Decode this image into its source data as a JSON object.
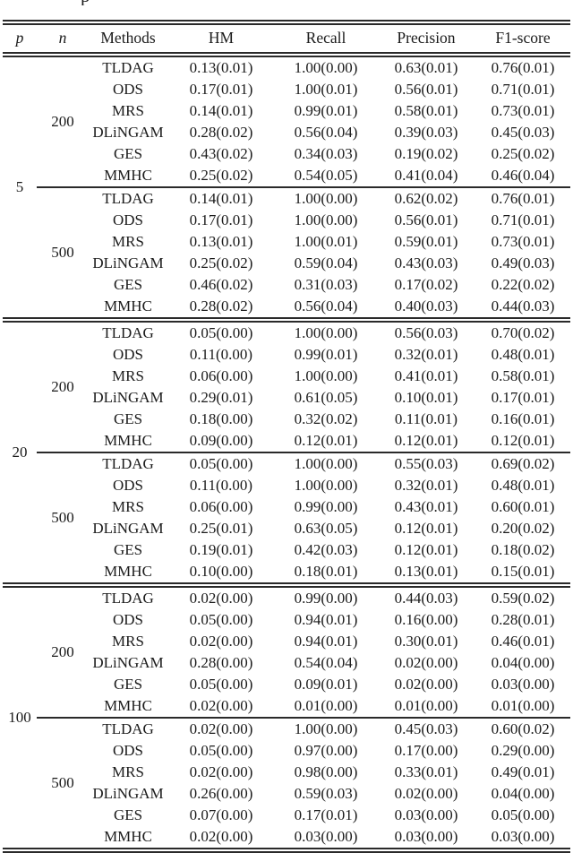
{
  "caption_fragment": "p",
  "colors": {
    "text": "#1b1b1b",
    "rule": "#2a2a2a",
    "background": "#ffffff"
  },
  "table": {
    "headers": [
      "p",
      "n",
      "Methods",
      "HM",
      "Recall",
      "Precision",
      "F1-score"
    ],
    "groups": [
      {
        "p": "5",
        "subgroups": [
          {
            "n": "200",
            "rows": [
              {
                "method": "TLDAG",
                "values": [
                  "0.13(0.01)",
                  "1.00(0.00)",
                  "0.63(0.01)",
                  "0.76(0.01)"
                ]
              },
              {
                "method": "ODS",
                "values": [
                  "0.17(0.01)",
                  "1.00(0.01)",
                  "0.56(0.01)",
                  "0.71(0.01)"
                ]
              },
              {
                "method": "MRS",
                "values": [
                  "0.14(0.01)",
                  "0.99(0.01)",
                  "0.58(0.01)",
                  "0.73(0.01)"
                ]
              },
              {
                "method": "DLiNGAM",
                "values": [
                  "0.28(0.02)",
                  "0.56(0.04)",
                  "0.39(0.03)",
                  "0.45(0.03)"
                ]
              },
              {
                "method": "GES",
                "values": [
                  "0.43(0.02)",
                  "0.34(0.03)",
                  "0.19(0.02)",
                  "0.25(0.02)"
                ]
              },
              {
                "method": "MMHC",
                "values": [
                  "0.25(0.02)",
                  "0.54(0.05)",
                  "0.41(0.04)",
                  "0.46(0.04)"
                ]
              }
            ]
          },
          {
            "n": "500",
            "rows": [
              {
                "method": "TLDAG",
                "values": [
                  "0.14(0.01)",
                  "1.00(0.00)",
                  "0.62(0.02)",
                  "0.76(0.01)"
                ]
              },
              {
                "method": "ODS",
                "values": [
                  "0.17(0.01)",
                  "1.00(0.00)",
                  "0.56(0.01)",
                  "0.71(0.01)"
                ]
              },
              {
                "method": "MRS",
                "values": [
                  "0.13(0.01)",
                  "1.00(0.01)",
                  "0.59(0.01)",
                  "0.73(0.01)"
                ]
              },
              {
                "method": "DLiNGAM",
                "values": [
                  "0.25(0.02)",
                  "0.59(0.04)",
                  "0.43(0.03)",
                  "0.49(0.03)"
                ]
              },
              {
                "method": "GES",
                "values": [
                  "0.46(0.02)",
                  "0.31(0.03)",
                  "0.17(0.02)",
                  "0.22(0.02)"
                ]
              },
              {
                "method": "MMHC",
                "values": [
                  "0.28(0.02)",
                  "0.56(0.04)",
                  "0.40(0.03)",
                  "0.44(0.03)"
                ]
              }
            ]
          }
        ]
      },
      {
        "p": "20",
        "subgroups": [
          {
            "n": "200",
            "rows": [
              {
                "method": "TLDAG",
                "values": [
                  "0.05(0.00)",
                  "1.00(0.00)",
                  "0.56(0.03)",
                  "0.70(0.02)"
                ]
              },
              {
                "method": "ODS",
                "values": [
                  "0.11(0.00)",
                  "0.99(0.01)",
                  "0.32(0.01)",
                  "0.48(0.01)"
                ]
              },
              {
                "method": "MRS",
                "values": [
                  "0.06(0.00)",
                  "1.00(0.00)",
                  "0.41(0.01)",
                  "0.58(0.01)"
                ]
              },
              {
                "method": "DLiNGAM",
                "values": [
                  "0.29(0.01)",
                  "0.61(0.05)",
                  "0.10(0.01)",
                  "0.17(0.01)"
                ]
              },
              {
                "method": "GES",
                "values": [
                  "0.18(0.00)",
                  "0.32(0.02)",
                  "0.11(0.01)",
                  "0.16(0.01)"
                ]
              },
              {
                "method": "MMHC",
                "values": [
                  "0.09(0.00)",
                  "0.12(0.01)",
                  "0.12(0.01)",
                  "0.12(0.01)"
                ]
              }
            ]
          },
          {
            "n": "500",
            "rows": [
              {
                "method": "TLDAG",
                "values": [
                  "0.05(0.00)",
                  "1.00(0.00)",
                  "0.55(0.03)",
                  "0.69(0.02)"
                ]
              },
              {
                "method": "ODS",
                "values": [
                  "0.11(0.00)",
                  "1.00(0.00)",
                  "0.32(0.01)",
                  "0.48(0.01)"
                ]
              },
              {
                "method": "MRS",
                "values": [
                  "0.06(0.00)",
                  "0.99(0.00)",
                  "0.43(0.01)",
                  "0.60(0.01)"
                ]
              },
              {
                "method": "DLiNGAM",
                "values": [
                  "0.25(0.01)",
                  "0.63(0.05)",
                  "0.12(0.01)",
                  "0.20(0.02)"
                ]
              },
              {
                "method": "GES",
                "values": [
                  "0.19(0.01)",
                  "0.42(0.03)",
                  "0.12(0.01)",
                  "0.18(0.02)"
                ]
              },
              {
                "method": "MMHC",
                "values": [
                  "0.10(0.00)",
                  "0.18(0.01)",
                  "0.13(0.01)",
                  "0.15(0.01)"
                ]
              }
            ]
          }
        ]
      },
      {
        "p": "100",
        "subgroups": [
          {
            "n": "200",
            "rows": [
              {
                "method": "TLDAG",
                "values": [
                  "0.02(0.00)",
                  "0.99(0.00)",
                  "0.44(0.03)",
                  "0.59(0.02)"
                ]
              },
              {
                "method": "ODS",
                "values": [
                  "0.05(0.00)",
                  "0.94(0.01)",
                  "0.16(0.00)",
                  "0.28(0.01)"
                ]
              },
              {
                "method": "MRS",
                "values": [
                  "0.02(0.00)",
                  "0.94(0.01)",
                  "0.30(0.01)",
                  "0.46(0.01)"
                ]
              },
              {
                "method": "DLiNGAM",
                "values": [
                  "0.28(0.00)",
                  "0.54(0.04)",
                  "0.02(0.00)",
                  "0.04(0.00)"
                ]
              },
              {
                "method": "GES",
                "values": [
                  "0.05(0.00)",
                  "0.09(0.01)",
                  "0.02(0.00)",
                  "0.03(0.00)"
                ]
              },
              {
                "method": "MMHC",
                "values": [
                  "0.02(0.00)",
                  "0.01(0.00)",
                  "0.01(0.00)",
                  "0.01(0.00)"
                ]
              }
            ]
          },
          {
            "n": "500",
            "rows": [
              {
                "method": "TLDAG",
                "values": [
                  "0.02(0.00)",
                  "1.00(0.00)",
                  "0.45(0.03)",
                  "0.60(0.02)"
                ]
              },
              {
                "method": "ODS",
                "values": [
                  "0.05(0.00)",
                  "0.97(0.00)",
                  "0.17(0.00)",
                  "0.29(0.00)"
                ]
              },
              {
                "method": "MRS",
                "values": [
                  "0.02(0.00)",
                  "0.98(0.00)",
                  "0.33(0.01)",
                  "0.49(0.01)"
                ]
              },
              {
                "method": "DLiNGAM",
                "values": [
                  "0.26(0.00)",
                  "0.59(0.03)",
                  "0.02(0.00)",
                  "0.04(0.00)"
                ]
              },
              {
                "method": "GES",
                "values": [
                  "0.07(0.00)",
                  "0.17(0.01)",
                  "0.03(0.00)",
                  "0.05(0.00)"
                ]
              },
              {
                "method": "MMHC",
                "values": [
                  "0.02(0.00)",
                  "0.03(0.00)",
                  "0.03(0.00)",
                  "0.03(0.00)"
                ]
              }
            ]
          }
        ]
      }
    ]
  }
}
